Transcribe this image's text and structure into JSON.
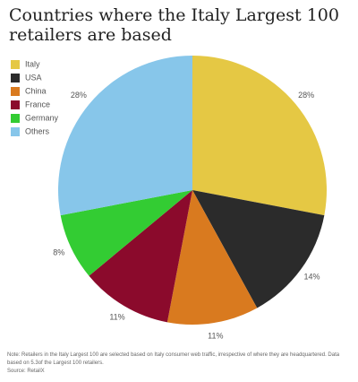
{
  "chart_data": {
    "type": "pie",
    "title": "Countries where the Italy Largest 100 retailers are based",
    "categories": [
      "Italy",
      "USA",
      "China",
      "France",
      "Germany",
      "Others"
    ],
    "values": [
      28,
      14,
      11,
      11,
      8,
      28
    ],
    "value_labels": [
      "28%",
      "14%",
      "11%",
      "11%",
      "8%",
      "28%"
    ],
    "colors": [
      "#e5c844",
      "#2b2b2b",
      "#d97a1f",
      "#8b0a2c",
      "#33cc33",
      "#87c6ea"
    ],
    "legend": "top-left",
    "note": "Note: Retailers in the Italy Largest 100 are selected based on Italy consumer web traffic, irrespective of where they are headquartered. Data based on 5.3of the Largest 100 retailers.",
    "source": "Source: RetailX"
  }
}
